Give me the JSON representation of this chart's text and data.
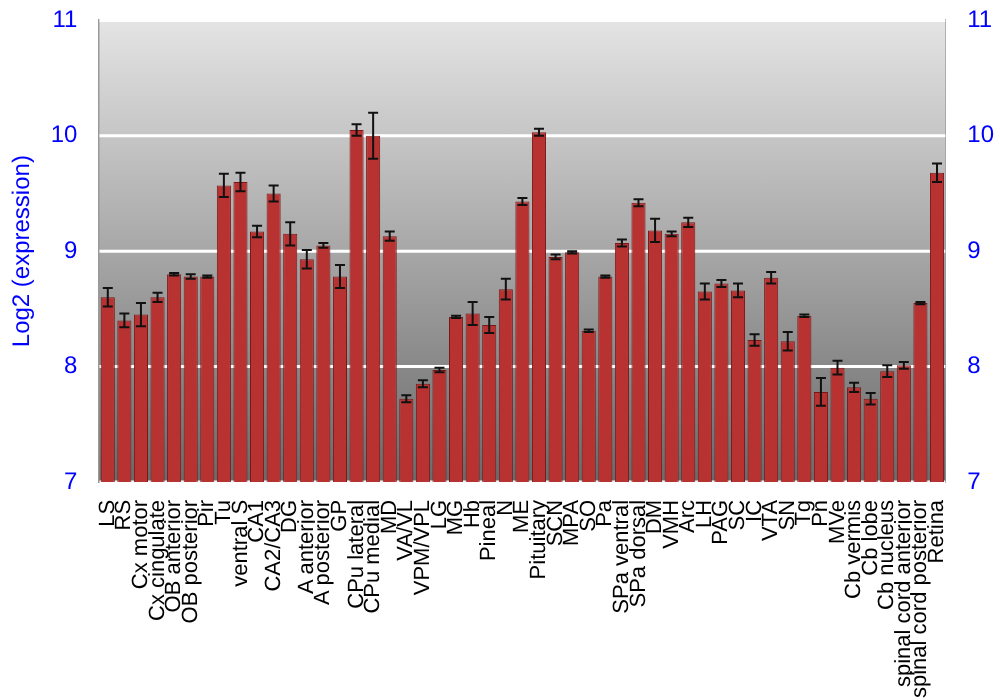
{
  "chart_data": {
    "type": "bar",
    "ylabel": "Log2 (expression)",
    "categories": [
      "LS",
      "RS",
      "Cx motor",
      "Cx cingulate",
      "OB anterior",
      "OB posterior",
      "Pir",
      "Tu",
      "ventral S",
      "CA1",
      "CA2/CA3",
      "DG",
      "A anterior",
      "A posterior",
      "GP",
      "CPu lateral",
      "CPu medial",
      "MD",
      "VA/VL",
      "VPM/VPL",
      "LG",
      "MG",
      "Hb",
      "Pineal",
      "N",
      "ME",
      "Pituitary",
      "SCN",
      "MPA",
      "SO",
      "Pa",
      "SPa ventral",
      "SPa dorsal",
      "DM",
      "VMH",
      "Arc",
      "LH",
      "PAG",
      "SC",
      "IC",
      "VTA",
      "SN",
      "Tg",
      "Pn",
      "MVe",
      "Cb vermis",
      "Cb lobe",
      "Cb nucleus",
      "spinal cord anterior",
      "spinal cord posterior",
      "Retina"
    ],
    "values": [
      8.6,
      8.4,
      8.45,
      8.6,
      8.8,
      8.78,
      8.78,
      9.57,
      9.6,
      9.17,
      9.5,
      9.15,
      8.93,
      9.05,
      8.78,
      10.05,
      10.0,
      9.13,
      7.72,
      7.85,
      7.97,
      8.43,
      8.46,
      8.36,
      8.67,
      9.43,
      10.03,
      8.95,
      8.99,
      8.31,
      8.78,
      9.07,
      9.42,
      9.18,
      9.15,
      9.25,
      8.65,
      8.72,
      8.66,
      8.23,
      8.77,
      8.22,
      8.44,
      7.78,
      7.99,
      7.82,
      7.72,
      7.96,
      8.01,
      8.55,
      9.68
    ],
    "errors": [
      0.08,
      0.06,
      0.1,
      0.04,
      0.01,
      0.02,
      0.01,
      0.1,
      0.08,
      0.05,
      0.07,
      0.1,
      0.08,
      0.02,
      0.1,
      0.05,
      0.2,
      0.04,
      0.03,
      0.03,
      0.02,
      0.01,
      0.1,
      0.07,
      0.09,
      0.03,
      0.03,
      0.02,
      0.01,
      0.01,
      0.01,
      0.03,
      0.03,
      0.1,
      0.02,
      0.04,
      0.07,
      0.03,
      0.06,
      0.05,
      0.05,
      0.08,
      0.01,
      0.12,
      0.06,
      0.04,
      0.05,
      0.05,
      0.03,
      0.01,
      0.08
    ],
    "color": "#b83232",
    "ylim": [
      7,
      11
    ],
    "yticks": [
      7,
      8,
      9,
      10,
      11
    ],
    "y2lim": [
      7,
      11
    ],
    "y2ticks": [
      7,
      8,
      9,
      10,
      11
    ],
    "grid": "y",
    "legend": false
  }
}
